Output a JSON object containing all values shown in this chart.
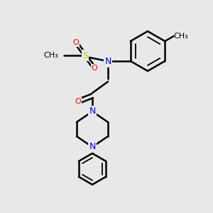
{
  "background_color": "#e8e8e8",
  "bond_color": "#000000",
  "bond_width": 1.8,
  "atom_colors": {
    "N": "#0000ff",
    "O": "#ff0000",
    "S": "#cccc00",
    "C": "#000000",
    "H": "#000000"
  },
  "font_size": 9,
  "fig_width": 3.0,
  "fig_height": 3.0,
  "dpi": 100
}
